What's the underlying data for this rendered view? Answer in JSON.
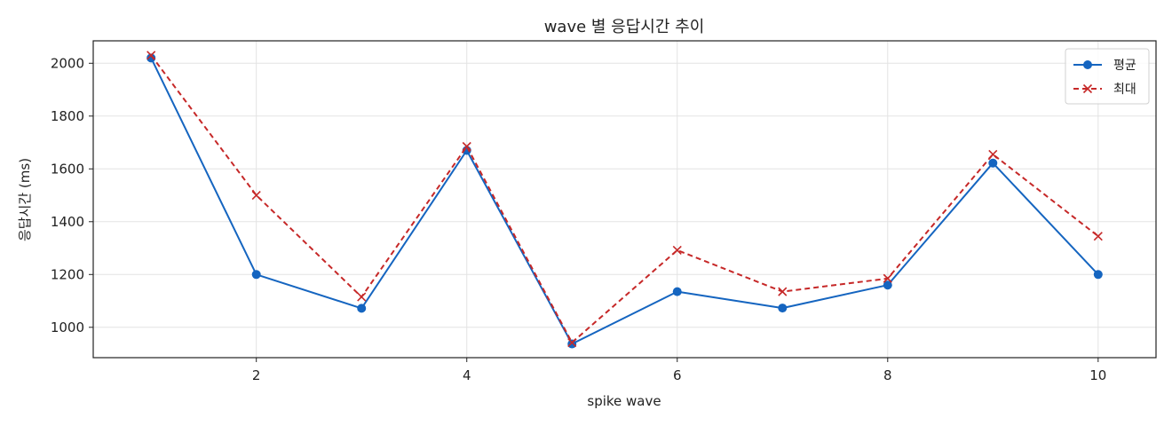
{
  "chart_data": {
    "type": "line",
    "title": "wave 별 응답시간 추이",
    "xlabel": "spike wave",
    "ylabel": "응답시간 (ms)",
    "x": [
      1,
      2,
      3,
      4,
      5,
      6,
      7,
      8,
      9,
      10
    ],
    "xlim": [
      0.45,
      10.55
    ],
    "ylim": [
      885,
      2085
    ],
    "xticks": [
      2,
      4,
      6,
      8,
      10
    ],
    "yticks": [
      1000,
      1200,
      1400,
      1600,
      1800,
      2000
    ],
    "grid": true,
    "legend_position": "top-right",
    "series": [
      {
        "name": "평균",
        "marker": "circle",
        "line_style": "solid",
        "color": "#1565c0",
        "values": [
          2020,
          1200,
          1072,
          1670,
          937,
          1135,
          1073,
          1160,
          1622,
          1200
        ]
      },
      {
        "name": "최대",
        "marker": "x",
        "line_style": "dashed",
        "color": "#c62828",
        "values": [
          2030,
          1500,
          1115,
          1685,
          942,
          1292,
          1135,
          1185,
          1655,
          1345
        ]
      }
    ]
  }
}
